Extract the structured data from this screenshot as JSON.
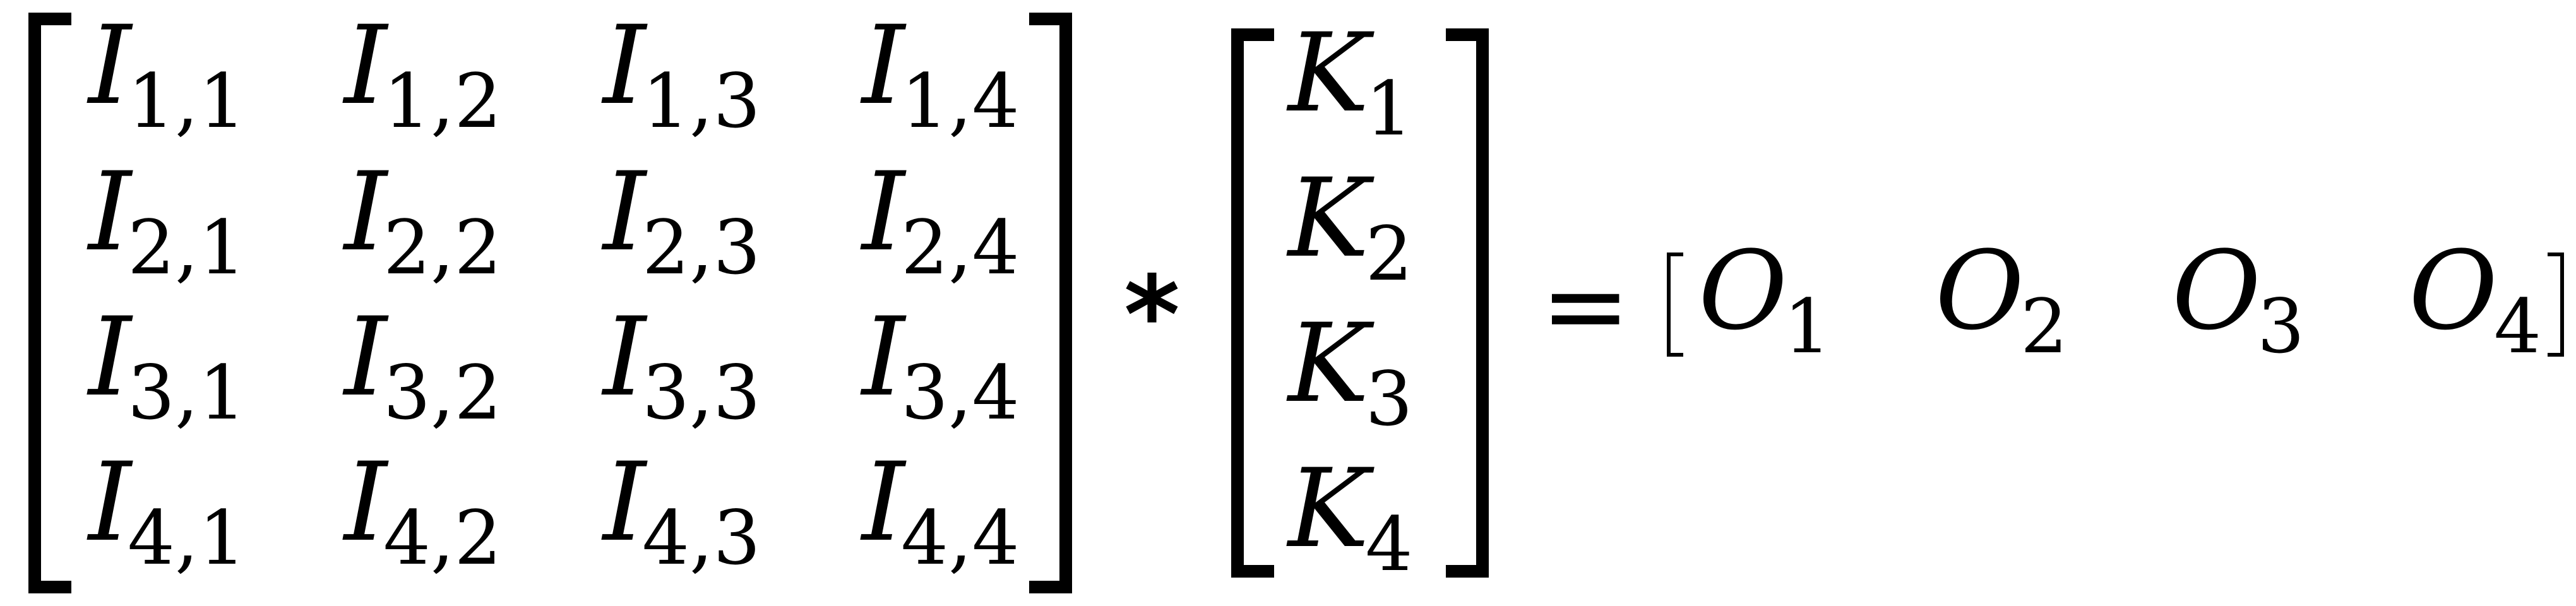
{
  "equation": {
    "input_matrix": {
      "symbol": "I",
      "rows": [
        [
          "1,1",
          "1,2",
          "1,3",
          "1,4"
        ],
        [
          "2,1",
          "2,2",
          "2,3",
          "2,4"
        ],
        [
          "3,1",
          "3,2",
          "3,3",
          "3,4"
        ],
        [
          "4,1",
          "4,2",
          "4,3",
          "4,4"
        ]
      ]
    },
    "operator_1": "*",
    "kernel_vector": {
      "symbol": "K",
      "entries": [
        "1",
        "2",
        "3",
        "4"
      ]
    },
    "operator_2": "=",
    "output_vector": {
      "symbol": "O",
      "entries": [
        "1",
        "2",
        "3",
        "4"
      ]
    }
  }
}
